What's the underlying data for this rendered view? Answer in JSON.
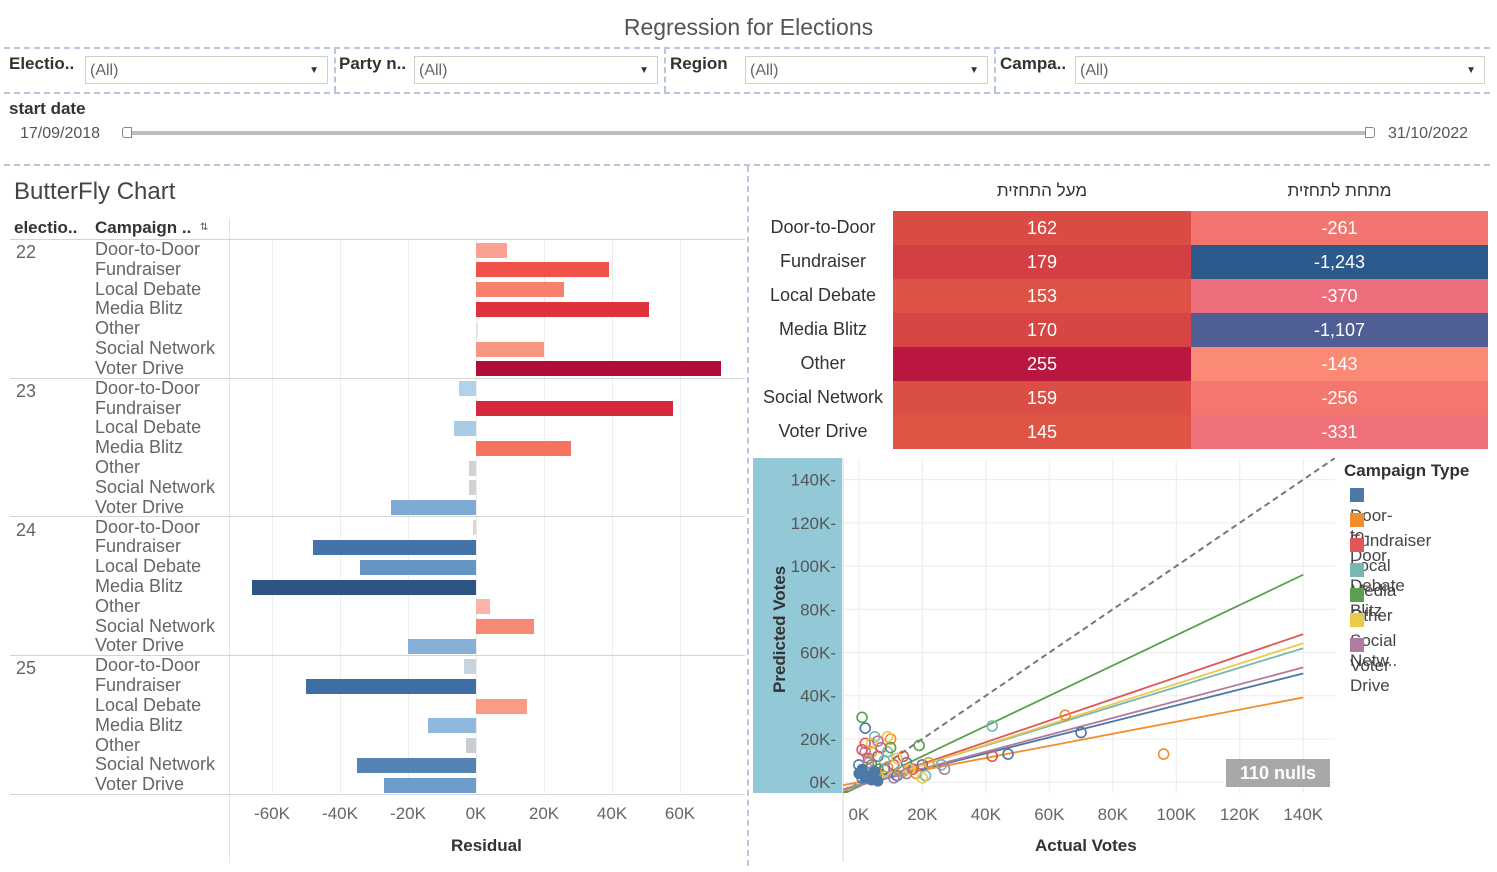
{
  "title": "Regression for Elections",
  "filters": [
    {
      "label": "Electio..",
      "value": "(All)"
    },
    {
      "label": "Party n..",
      "value": "(All)"
    },
    {
      "label": "Region",
      "value": "(All)"
    },
    {
      "label": "Campa..",
      "value": "(All)"
    }
  ],
  "date_filter": {
    "label": "start date",
    "start": "17/09/2018",
    "end": "31/10/2022"
  },
  "butterfly": {
    "title": "ButterFly Chart",
    "col_election": "electio..",
    "col_campaign": "Campaign ..",
    "x_title": "Residual",
    "x_ticks": [
      "-60K",
      "-40K",
      "-20K",
      "0K",
      "20K",
      "40K",
      "60K"
    ],
    "groups": [
      {
        "election": "22",
        "rows": [
          {
            "campaign": "Door-to-Door",
            "residual": 9000,
            "color": "#f8a392"
          },
          {
            "campaign": "Fundraiser",
            "residual": 39000,
            "color": "#ee5249"
          },
          {
            "campaign": "Local Debate",
            "residual": 26000,
            "color": "#f5816e"
          },
          {
            "campaign": "Media Blitz",
            "residual": 51000,
            "color": "#e0323d"
          },
          {
            "campaign": "Other",
            "residual": 500,
            "color": "#e4e4e4"
          },
          {
            "campaign": "Social Network",
            "residual": 20000,
            "color": "#f8977f"
          },
          {
            "campaign": "Voter Drive",
            "residual": 72000,
            "color": "#b10d3b"
          }
        ]
      },
      {
        "election": "23",
        "rows": [
          {
            "campaign": "Door-to-Door",
            "residual": -5000,
            "color": "#b3d1e8"
          },
          {
            "campaign": "Fundraiser",
            "residual": 58000,
            "color": "#d42a3c"
          },
          {
            "campaign": "Local Debate",
            "residual": -6500,
            "color": "#a8cbe6"
          },
          {
            "campaign": "Media Blitz",
            "residual": 28000,
            "color": "#f4745f"
          },
          {
            "campaign": "Other",
            "residual": -2000,
            "color": "#d2d2d6"
          },
          {
            "campaign": "Social Network",
            "residual": -2000,
            "color": "#d2d2d6"
          },
          {
            "campaign": "Voter Drive",
            "residual": -25000,
            "color": "#7eaad3"
          }
        ]
      },
      {
        "election": "24",
        "rows": [
          {
            "campaign": "Door-to-Door",
            "residual": -1000,
            "color": "#d8d8d8"
          },
          {
            "campaign": "Fundraiser",
            "residual": -48000,
            "color": "#4573a8"
          },
          {
            "campaign": "Local Debate",
            "residual": -34000,
            "color": "#6695c4"
          },
          {
            "campaign": "Media Blitz",
            "residual": -66000,
            "color": "#2c5585"
          },
          {
            "campaign": "Other",
            "residual": 4000,
            "color": "#f9b3a7"
          },
          {
            "campaign": "Social Network",
            "residual": 17000,
            "color": "#f68a75"
          },
          {
            "campaign": "Voter Drive",
            "residual": -20000,
            "color": "#86b0d8"
          }
        ]
      },
      {
        "election": "25",
        "rows": [
          {
            "campaign": "Door-to-Door",
            "residual": -3500,
            "color": "#c7d3df"
          },
          {
            "campaign": "Fundraiser",
            "residual": -50000,
            "color": "#3f6ea6"
          },
          {
            "campaign": "Local Debate",
            "residual": 15000,
            "color": "#f89c88"
          },
          {
            "campaign": "Media Blitz",
            "residual": -14000,
            "color": "#8fb8df"
          },
          {
            "campaign": "Other",
            "residual": -3000,
            "color": "#c9ccd3"
          },
          {
            "campaign": "Social Network",
            "residual": -35000,
            "color": "#5683b6"
          },
          {
            "campaign": "Voter Drive",
            "residual": -27000,
            "color": "#6e9ccb"
          }
        ]
      }
    ]
  },
  "heat_table": {
    "col_above": "מעל התחזית",
    "col_below": "מתחת לתחזית",
    "rows": [
      {
        "campaign": "Door-to-Door",
        "above": "162",
        "below": "-261",
        "above_color": "#da4b45",
        "below_color": "#f2766f"
      },
      {
        "campaign": "Fundraiser",
        "above": "179",
        "below": "-1,243",
        "above_color": "#d43f43",
        "below_color": "#2c5a8c"
      },
      {
        "campaign": "Local Debate",
        "above": "153",
        "below": "-370",
        "above_color": "#de5245",
        "below_color": "#ec6d7c"
      },
      {
        "campaign": "Media Blitz",
        "above": "170",
        "below": "-1,107",
        "above_color": "#d74545",
        "below_color": "#4f5f96"
      },
      {
        "campaign": "Other",
        "above": "255",
        "below": "-143",
        "above_color": "#b9173f",
        "below_color": "#fa8a76"
      },
      {
        "campaign": "Social Network",
        "above": "159",
        "below": "-256",
        "above_color": "#db4e45",
        "below_color": "#f3776f"
      },
      {
        "campaign": "Voter Drive",
        "above": "145",
        "below": "-331",
        "above_color": "#df5545",
        "below_color": "#ee7079"
      }
    ]
  },
  "chart_data": {
    "type": "scatter",
    "xlabel": "Actual Votes",
    "ylabel": "Predicted Votes",
    "xlim": [
      -5000,
      150000
    ],
    "ylim": [
      -5000,
      150000
    ],
    "x_ticks": [
      "0K",
      "20K",
      "40K",
      "60K",
      "80K",
      "100K",
      "120K",
      "140K"
    ],
    "y_ticks": [
      "0K",
      "20K",
      "40K",
      "60K",
      "80K",
      "100K",
      "120K",
      "140K"
    ],
    "nulls_label": "110 nulls",
    "legend_title": "Campaign Type",
    "series": [
      {
        "name": "Door-to-Door",
        "color": "#4e79a7",
        "slope": 0.37,
        "intercept": -1500,
        "points": [
          [
            1000,
            2000
          ],
          [
            3000,
            4000
          ],
          [
            5000,
            1500
          ],
          [
            8000,
            6000
          ],
          [
            12000,
            3000
          ],
          [
            15000,
            9000
          ],
          [
            20000,
            8000
          ],
          [
            47000,
            13000
          ],
          [
            70000,
            23000
          ],
          [
            2000,
            25000
          ],
          [
            0,
            8000
          ],
          [
            6000,
            12000
          ]
        ]
      },
      {
        "name": "Fundraiser",
        "color": "#f28e2b",
        "slope": 0.28,
        "intercept": 0,
        "points": [
          [
            96000,
            13000
          ],
          [
            2000,
            5000
          ],
          [
            5000,
            3000
          ],
          [
            9000,
            7000
          ],
          [
            14000,
            5000
          ],
          [
            18000,
            4000
          ],
          [
            22000,
            9000
          ],
          [
            65000,
            31000
          ],
          [
            4000,
            14000
          ],
          [
            10000,
            20000
          ]
        ]
      },
      {
        "name": "Local Debate",
        "color": "#e15759",
        "slope": 0.5,
        "intercept": -1500,
        "points": [
          [
            1000,
            15000
          ],
          [
            3000,
            11000
          ],
          [
            6000,
            4000
          ],
          [
            11000,
            8000
          ],
          [
            14000,
            12000
          ],
          [
            17000,
            6000
          ],
          [
            42000,
            12000
          ],
          [
            2000,
            18000
          ],
          [
            7000,
            16000
          ]
        ]
      },
      {
        "name": "Media Blitz",
        "color": "#76b7b2",
        "slope": 0.45,
        "intercept": -1000,
        "points": [
          [
            5000,
            21000
          ],
          [
            9000,
            14000
          ],
          [
            13000,
            5000
          ],
          [
            21000,
            3000
          ],
          [
            26000,
            8000
          ],
          [
            42000,
            26000
          ],
          [
            8000,
            10000
          ],
          [
            3000,
            6000
          ]
        ]
      },
      {
        "name": "Other",
        "color": "#59a14f",
        "slope": 0.7,
        "intercept": -2000,
        "points": [
          [
            1000,
            30000
          ],
          [
            4000,
            8000
          ],
          [
            10000,
            16000
          ],
          [
            19000,
            17000
          ],
          [
            3000,
            2000
          ],
          [
            6000,
            6000
          ]
        ]
      },
      {
        "name": "Social Netw..",
        "color": "#edc948",
        "slope": 0.47,
        "intercept": -1500,
        "points": [
          [
            9000,
            21000
          ],
          [
            4000,
            18000
          ],
          [
            12000,
            11000
          ],
          [
            16000,
            6000
          ],
          [
            6000,
            3000
          ],
          [
            20000,
            2000
          ]
        ]
      },
      {
        "name": "Voter Drive",
        "color": "#b07aa1",
        "slope": 0.39,
        "intercept": -1500,
        "points": [
          [
            6000,
            19000
          ],
          [
            2000,
            14000
          ],
          [
            15000,
            4000
          ],
          [
            27000,
            6000
          ],
          [
            3000,
            9000
          ],
          [
            11000,
            2000
          ]
        ]
      }
    ]
  }
}
